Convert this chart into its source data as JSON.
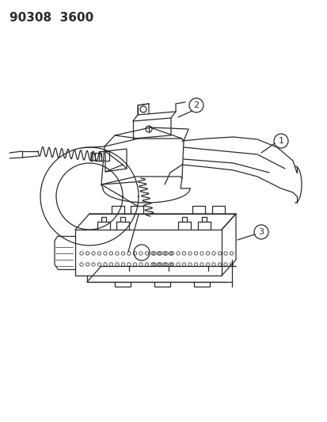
{
  "background_color": "#ffffff",
  "header_text": "90308  3600",
  "line_color": "#2a2a2a",
  "lw": 0.9
}
